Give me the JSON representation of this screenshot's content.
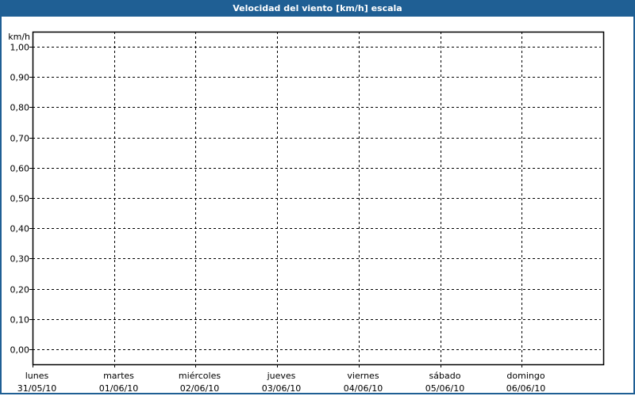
{
  "window": {
    "title": "Velocidad del viento [km/h] escala"
  },
  "colors": {
    "titlebar": "#1f5f94",
    "grid": "#000000",
    "background": "#ffffff"
  },
  "chart_data": {
    "type": "line",
    "title": "Velocidad del viento [km/h] escala",
    "ylabel": "km/h",
    "ylim": [
      -0.05,
      1.05
    ],
    "yticks": [
      1.0,
      0.9,
      0.8,
      0.7,
      0.6,
      0.5,
      0.4,
      0.3,
      0.2,
      0.1,
      0.0
    ],
    "ytick_labels": [
      "1,00",
      "0,90",
      "0,80",
      "0,70",
      "0,60",
      "0,50",
      "0,40",
      "0,30",
      "0,20",
      "0,10",
      "0,00"
    ],
    "x_categories": [
      {
        "day": "lunes",
        "date": "31/05/10"
      },
      {
        "day": "martes",
        "date": "01/06/10"
      },
      {
        "day": "miércoles",
        "date": "02/06/10"
      },
      {
        "day": "jueves",
        "date": "03/06/10"
      },
      {
        "day": "viernes",
        "date": "04/06/10"
      },
      {
        "day": "sábado",
        "date": "05/06/10"
      },
      {
        "day": "domingo",
        "date": "06/06/10"
      }
    ],
    "grid": true,
    "grid_style": "dashed",
    "series": []
  }
}
